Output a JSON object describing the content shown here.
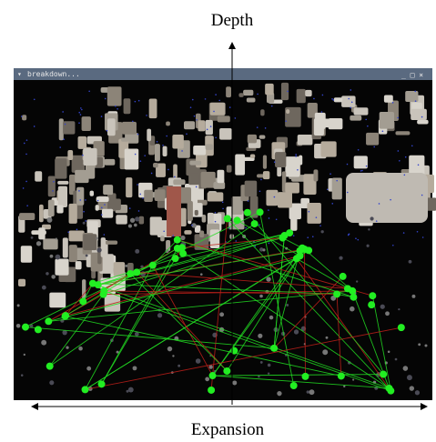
{
  "figure": {
    "y_axis_label": "Depth",
    "x_axis_label": "Expansion",
    "window": {
      "title": "breakdown..."
    }
  }
}
